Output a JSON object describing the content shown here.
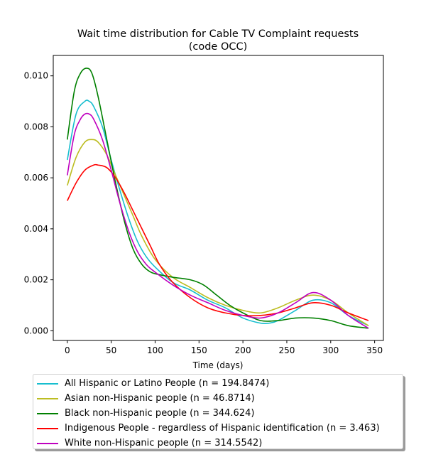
{
  "chart_data": {
    "type": "line",
    "title_line1": "Wait time distribution  for Cable TV Complaint  requests",
    "title_line2": "(code OCC)",
    "xlabel": "Time (days)",
    "ylabel": "",
    "xlim": [
      -16,
      360
    ],
    "ylim": [
      -0.00038,
      0.0108
    ],
    "xticks": [
      0,
      50,
      100,
      150,
      200,
      250,
      300,
      350
    ],
    "yticks": [
      0.0,
      0.002,
      0.004,
      0.006,
      0.008,
      0.01
    ],
    "ytick_labels": [
      "0.000",
      "0.002",
      "0.004",
      "0.006",
      "0.008",
      "0.010"
    ],
    "grid": false,
    "legend_position": "bottom-outside",
    "series": [
      {
        "name": "All Hispanic or Latino People (n = 194.8474)",
        "color": "#17becf",
        "x": [
          0,
          10,
          20,
          25,
          30,
          40,
          50,
          60,
          70,
          80,
          90,
          100,
          120,
          140,
          160,
          180,
          200,
          220,
          230,
          240,
          260,
          280,
          300,
          320,
          343
        ],
        "y": [
          0.0067,
          0.0085,
          0.009,
          0.009,
          0.0088,
          0.008,
          0.0067,
          0.0055,
          0.0044,
          0.0035,
          0.0029,
          0.0025,
          0.0019,
          0.0016,
          0.0012,
          0.0009,
          0.0005,
          0.0003,
          0.0003,
          0.0004,
          0.0008,
          0.0012,
          0.0011,
          0.0006,
          0.0002
        ]
      },
      {
        "name": "Asian non-Hispanic people (n = 46.8714)",
        "color": "#bcbd22",
        "x": [
          0,
          10,
          20,
          28,
          35,
          45,
          55,
          65,
          75,
          85,
          100,
          120,
          140,
          160,
          180,
          200,
          220,
          240,
          260,
          280,
          300,
          320,
          343
        ],
        "y": [
          0.0057,
          0.0068,
          0.0074,
          0.0075,
          0.0074,
          0.0069,
          0.0061,
          0.0053,
          0.0045,
          0.0037,
          0.0028,
          0.0021,
          0.0017,
          0.0013,
          0.001,
          0.0008,
          0.0007,
          0.0009,
          0.0012,
          0.0014,
          0.0012,
          0.0007,
          0.0002
        ]
      },
      {
        "name": "Black non-Hispanic people (n = 344.624)",
        "color": "#008000",
        "x": [
          0,
          8,
          15,
          22,
          28,
          35,
          45,
          55,
          65,
          75,
          85,
          95,
          105,
          120,
          140,
          155,
          170,
          185,
          200,
          220,
          240,
          260,
          280,
          300,
          320,
          343
        ],
        "y": [
          0.0075,
          0.0094,
          0.0101,
          0.0103,
          0.0101,
          0.0092,
          0.0075,
          0.0058,
          0.0043,
          0.0032,
          0.0026,
          0.0023,
          0.0022,
          0.0021,
          0.002,
          0.0018,
          0.0014,
          0.001,
          0.0007,
          0.0004,
          0.0004,
          0.0005,
          0.0005,
          0.0004,
          0.0002,
          0.0001
        ]
      },
      {
        "name": "Indigenous People - regardless of Hispanic identification (n = 3.463)",
        "color": "#ff0000",
        "x": [
          0,
          10,
          20,
          30,
          35,
          45,
          55,
          65,
          75,
          85,
          95,
          105,
          120,
          140,
          160,
          180,
          200,
          220,
          240,
          260,
          280,
          300,
          320,
          343
        ],
        "y": [
          0.0051,
          0.0058,
          0.0063,
          0.0065,
          0.0065,
          0.0064,
          0.006,
          0.0054,
          0.0047,
          0.004,
          0.0033,
          0.0026,
          0.0019,
          0.0013,
          0.0009,
          0.0007,
          0.0006,
          0.0006,
          0.0007,
          0.0009,
          0.0011,
          0.001,
          0.0007,
          0.0004
        ]
      },
      {
        "name": "White non-Hispanic people (n = 314.5542)",
        "color": "#bf00bf",
        "x": [
          0,
          8,
          15,
          20,
          25,
          30,
          40,
          50,
          60,
          70,
          80,
          90,
          100,
          120,
          140,
          160,
          180,
          200,
          220,
          240,
          260,
          280,
          300,
          320,
          343
        ],
        "y": [
          0.0061,
          0.0077,
          0.0083,
          0.0085,
          0.0085,
          0.0083,
          0.0075,
          0.0063,
          0.005,
          0.0039,
          0.0031,
          0.0026,
          0.0023,
          0.0018,
          0.0014,
          0.0011,
          0.0008,
          0.0006,
          0.0005,
          0.0007,
          0.0011,
          0.0015,
          0.0012,
          0.0006,
          0.0001
        ]
      }
    ]
  }
}
